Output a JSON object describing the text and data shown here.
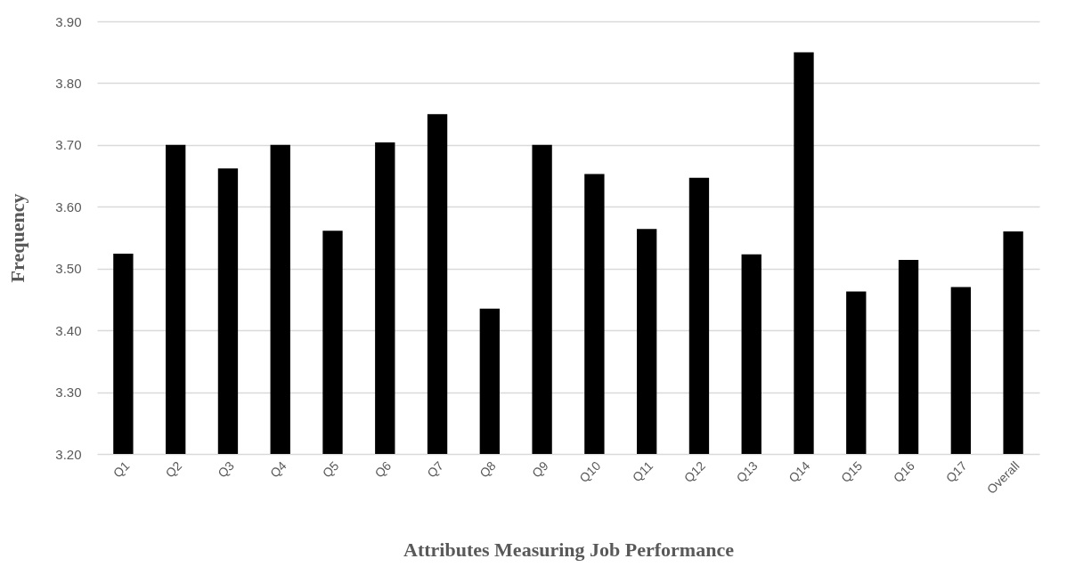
{
  "chart_data": {
    "type": "bar",
    "xlabel": "Attributes Measuring Job Performance",
    "ylabel": "Frequency",
    "categories": [
      "Q1",
      "Q2",
      "Q3",
      "Q4",
      "Q5",
      "Q6",
      "Q7",
      "Q8",
      "Q9",
      "Q10",
      "Q11",
      "Q12",
      "Q13",
      "Q14",
      "Q15",
      "Q16",
      "Q17",
      "Overall"
    ],
    "values": [
      3.524,
      3.7,
      3.662,
      3.7,
      3.561,
      3.704,
      3.75,
      3.435,
      3.7,
      3.653,
      3.564,
      3.647,
      3.523,
      3.85,
      3.463,
      3.514,
      3.47,
      3.56
    ],
    "color": "#000000",
    "ylim": [
      3.2,
      3.9
    ],
    "yticks": [
      {
        "value": 3.2,
        "label": "3.20"
      },
      {
        "value": 3.3,
        "label": "3.30"
      },
      {
        "value": 3.4,
        "label": "3.40"
      },
      {
        "value": 3.5,
        "label": "3.50"
      },
      {
        "value": 3.6,
        "label": "3.60"
      },
      {
        "value": 3.7,
        "label": "3.70"
      },
      {
        "value": 3.8,
        "label": "3.80"
      },
      {
        "value": 3.9,
        "label": "3.90"
      }
    ],
    "grid": "y"
  }
}
